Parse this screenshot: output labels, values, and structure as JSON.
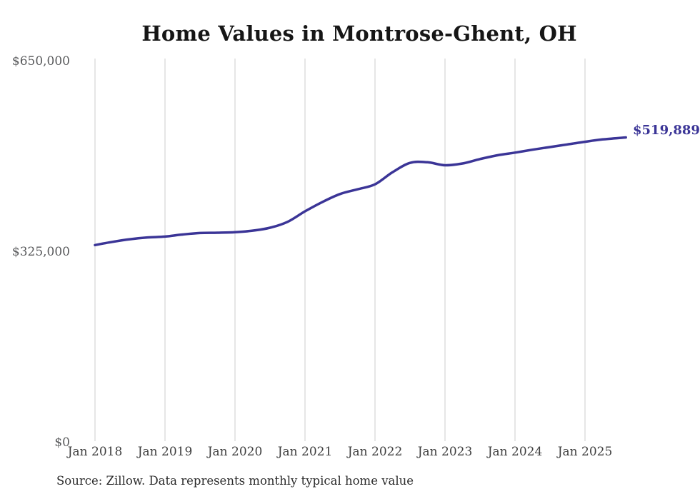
{
  "chart_data": {
    "type": "line",
    "title": "Home Values in Montrose-Ghent, OH",
    "end_label": "$519,889",
    "latest_value": 519889,
    "x_axis": {
      "tick_labels": [
        "Jan 2018",
        "Jan 2019",
        "Jan 2020",
        "Jan 2021",
        "Jan 2022",
        "Jan 2023",
        "Jan 2024",
        "Jan 2025"
      ]
    },
    "y_axis": {
      "min": 0,
      "max": 650000,
      "ticks": [
        {
          "value": 650000,
          "label": "$650,000"
        },
        {
          "value": 325000,
          "label": "$325,000"
        },
        {
          "value": 0,
          "label": "$0"
        }
      ]
    },
    "grid": {
      "vertical": true,
      "horizontal": false
    },
    "series": [
      {
        "name": "Typical home value",
        "points": [
          [
            "2018-01",
            336500
          ],
          [
            "2018-04",
            342000
          ],
          [
            "2018-07",
            346500
          ],
          [
            "2018-10",
            349500
          ],
          [
            "2019-01",
            351000
          ],
          [
            "2019-04",
            354500
          ],
          [
            "2019-07",
            357000
          ],
          [
            "2019-10",
            357500
          ],
          [
            "2020-01",
            358500
          ],
          [
            "2020-04",
            361000
          ],
          [
            "2020-07",
            366000
          ],
          [
            "2020-10",
            376000
          ],
          [
            "2021-01",
            394000
          ],
          [
            "2021-04",
            410000
          ],
          [
            "2021-07",
            423500
          ],
          [
            "2021-10",
            431500
          ],
          [
            "2022-01",
            440000
          ],
          [
            "2022-04",
            460500
          ],
          [
            "2022-07",
            476500
          ],
          [
            "2022-10",
            477500
          ],
          [
            "2023-01",
            472500
          ],
          [
            "2023-04",
            475500
          ],
          [
            "2023-07",
            483000
          ],
          [
            "2023-10",
            489500
          ],
          [
            "2024-01",
            494000
          ],
          [
            "2024-04",
            499000
          ],
          [
            "2024-07",
            503500
          ],
          [
            "2024-10",
            508000
          ],
          [
            "2025-01",
            512500
          ],
          [
            "2025-04",
            516500
          ],
          [
            "2025-08",
            519889
          ]
        ]
      }
    ]
  },
  "source_note": "Source: Zillow. Data represents monthly typical home value",
  "colors": {
    "line": "#3b3597",
    "grid": "#cccccc",
    "title": "#161616",
    "y_tick": "#58595b",
    "x_tick": "#3f3f3f",
    "source": "#2b2b2b",
    "background": "#ffffff"
  }
}
